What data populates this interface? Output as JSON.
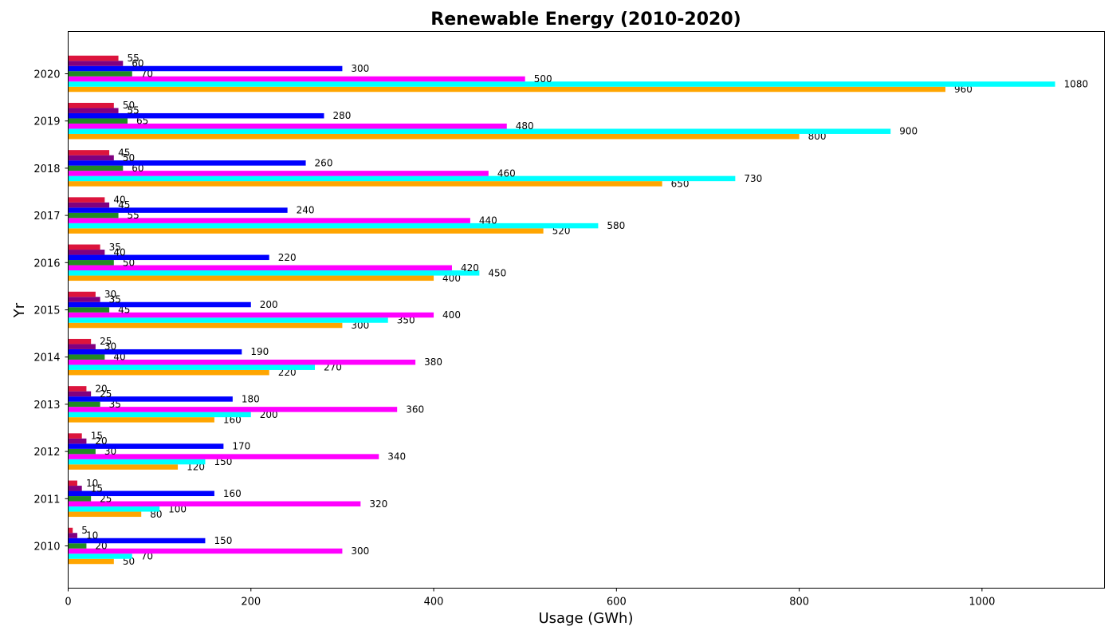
{
  "chart_data": {
    "type": "bar",
    "orientation": "horizontal",
    "title": "Renewable Energy (2010-2020)",
    "xlabel": "Usage (GWh)",
    "ylabel": "Yr",
    "categories": [
      "2010",
      "2011",
      "2012",
      "2013",
      "2014",
      "2015",
      "2016",
      "2017",
      "2018",
      "2019",
      "2020"
    ],
    "xlim": [
      0,
      1134
    ],
    "x_ticks": [
      "0",
      "200",
      "400",
      "600",
      "800",
      "1000"
    ],
    "grid": false,
    "legend": "none",
    "series": [
      {
        "color": "#ffa500",
        "values": [
          50,
          80,
          120,
          160,
          220,
          300,
          400,
          520,
          650,
          800,
          960
        ]
      },
      {
        "color": "#00ffff",
        "values": [
          70,
          100,
          150,
          200,
          270,
          350,
          450,
          580,
          730,
          900,
          1080
        ]
      },
      {
        "color": "#ff00ff",
        "values": [
          300,
          320,
          340,
          360,
          380,
          400,
          420,
          440,
          460,
          480,
          500
        ]
      },
      {
        "color": "#228b22",
        "values": [
          20,
          25,
          30,
          35,
          40,
          45,
          50,
          55,
          60,
          65,
          70
        ]
      },
      {
        "color": "#0000ff",
        "values": [
          150,
          160,
          170,
          180,
          190,
          200,
          220,
          240,
          260,
          280,
          300
        ]
      },
      {
        "color": "#800080",
        "values": [
          10,
          15,
          20,
          25,
          30,
          35,
          40,
          45,
          50,
          55,
          60
        ]
      },
      {
        "color": "#dc143c",
        "values": [
          5,
          10,
          15,
          20,
          25,
          30,
          35,
          40,
          45,
          50,
          55
        ]
      }
    ]
  }
}
